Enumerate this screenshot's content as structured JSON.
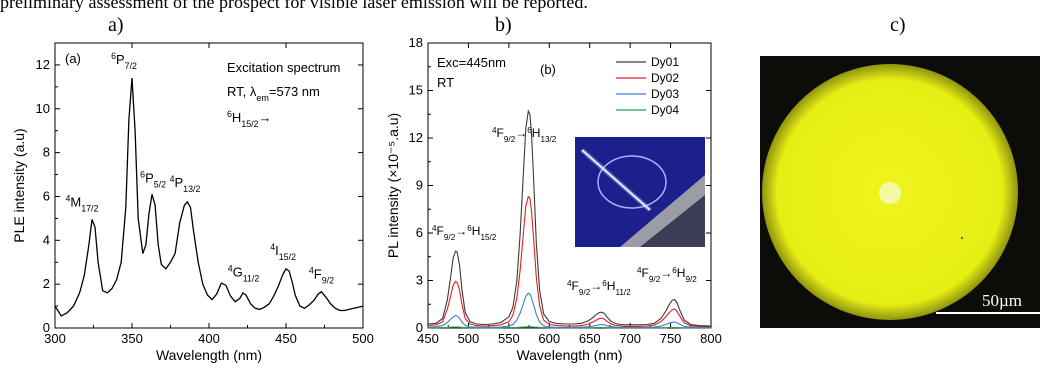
{
  "header_text": "preliminary assessment of the prospect for visible laser emission will be reported.",
  "panel_labels": [
    "a)",
    "b)",
    "c)"
  ],
  "chart_data": [
    {
      "type": "line",
      "panel": "a)",
      "inner_label": "(a)",
      "title": "",
      "xlabel": "Wavelength (nm)",
      "ylabel": "PLE intensity (a.u)",
      "xlim": [
        300,
        500
      ],
      "ylim": [
        0,
        13
      ],
      "xticks": [
        300,
        350,
        400,
        450,
        500
      ],
      "yticks": [
        0,
        2,
        4,
        6,
        8,
        10,
        12
      ],
      "grid": false,
      "annotation_lines": [
        "Excitation spectrum",
        "RT, λem=573 nm",
        "6H15/2→"
      ],
      "peak_labels": [
        {
          "text": "4M17/2",
          "x": 324,
          "y": 5.0
        },
        {
          "text": "6P7/2",
          "x": 350,
          "y": 11.4
        },
        {
          "text": "6P5/2",
          "x": 365,
          "y": 6.1
        },
        {
          "text": "4P13/2",
          "x": 387,
          "y": 5.8
        },
        {
          "text": "4G11/2",
          "x": 425,
          "y": 1.9
        },
        {
          "text": "4I15/2",
          "x": 452,
          "y": 2.7
        },
        {
          "text": "4F9/2",
          "x": 473,
          "y": 1.7
        }
      ],
      "series": [
        {
          "color": "#000000",
          "x": [
            300,
            304,
            308,
            312,
            316,
            319,
            322,
            324,
            326,
            328,
            331,
            334,
            337,
            340,
            343,
            346,
            348,
            350,
            352,
            354,
            357,
            359,
            361,
            363,
            365,
            367,
            369,
            372,
            375,
            378,
            381,
            384,
            386,
            388,
            390,
            393,
            396,
            399,
            402,
            405,
            408,
            411,
            414,
            417,
            420,
            422,
            424,
            427,
            430,
            433,
            436,
            439,
            442,
            445,
            448,
            450,
            452,
            454,
            456,
            459,
            462,
            465,
            468,
            471,
            473,
            476,
            479,
            482,
            485,
            488,
            491,
            494,
            497,
            500
          ],
          "y": [
            1.0,
            0.55,
            0.7,
            1.0,
            1.6,
            2.4,
            3.8,
            4.95,
            4.6,
            3.0,
            1.7,
            1.6,
            1.8,
            2.2,
            3.0,
            5.5,
            9.5,
            11.4,
            9.0,
            5.0,
            3.4,
            3.8,
            5.2,
            6.1,
            5.6,
            3.8,
            2.9,
            2.7,
            3.0,
            3.4,
            4.8,
            5.6,
            5.75,
            5.5,
            4.4,
            3.0,
            2.0,
            1.5,
            1.3,
            1.55,
            2.05,
            1.95,
            1.45,
            1.2,
            1.35,
            1.6,
            1.5,
            1.1,
            0.9,
            0.85,
            0.95,
            1.1,
            1.45,
            1.9,
            2.45,
            2.7,
            2.6,
            2.1,
            1.5,
            1.0,
            0.9,
            1.05,
            1.25,
            1.55,
            1.65,
            1.4,
            1.1,
            0.9,
            0.8,
            0.8,
            0.85,
            0.9,
            0.95,
            1.0
          ]
        }
      ]
    },
    {
      "type": "line",
      "panel": "b)",
      "inner_label": "(b)",
      "title": "",
      "xlabel": "Wavelength (nm)",
      "ylabel": "PL intensity (×10⁻⁵.a.u)",
      "xlim": [
        450,
        800
      ],
      "ylim": [
        0,
        18
      ],
      "xticks": [
        450,
        500,
        550,
        600,
        650,
        700,
        750,
        800
      ],
      "yticks": [
        0,
        3,
        6,
        9,
        12,
        15,
        18
      ],
      "grid": false,
      "annotation_lines": [
        "Exc=445nm",
        "RT"
      ],
      "legend_position": "top-right",
      "transition_labels": [
        "4F9/2→6H15/2",
        "4F9/2→6H13/2",
        "4F9/2→6H11/2",
        "4F9/2→6H9/2"
      ],
      "x": [
        450,
        460,
        468,
        474,
        478,
        481,
        484,
        486,
        489,
        492,
        496,
        502,
        510,
        520,
        530,
        540,
        550,
        555,
        560,
        564,
        568,
        571,
        574,
        576,
        578,
        581,
        584,
        588,
        593,
        600,
        610,
        620,
        630,
        640,
        648,
        654,
        658,
        662,
        665,
        668,
        672,
        677,
        684,
        692,
        700,
        710,
        720,
        730,
        738,
        744,
        748,
        752,
        755,
        758,
        762,
        767,
        775,
        785,
        800
      ],
      "series": [
        {
          "name": "Dy01",
          "color": "#3a3a3a",
          "values": [
            0.25,
            0.3,
            0.6,
            1.8,
            3.2,
            4.4,
            4.85,
            4.8,
            4.0,
            2.4,
            1.0,
            0.4,
            0.25,
            0.22,
            0.25,
            0.35,
            0.7,
            1.3,
            3.0,
            6.0,
            9.8,
            12.6,
            13.7,
            13.5,
            12.3,
            9.0,
            5.4,
            2.4,
            0.9,
            0.4,
            0.28,
            0.25,
            0.25,
            0.3,
            0.45,
            0.65,
            0.85,
            0.98,
            1.0,
            0.92,
            0.65,
            0.4,
            0.25,
            0.2,
            0.2,
            0.2,
            0.22,
            0.3,
            0.6,
            1.05,
            1.45,
            1.75,
            1.8,
            1.6,
            1.05,
            0.5,
            0.22,
            0.15,
            0.12
          ]
        },
        {
          "name": "Dy02",
          "color": "#e02020",
          "values": [
            0.15,
            0.2,
            0.4,
            1.2,
            2.0,
            2.7,
            2.95,
            2.9,
            2.4,
            1.5,
            0.6,
            0.25,
            0.15,
            0.12,
            0.15,
            0.2,
            0.4,
            0.8,
            1.9,
            3.7,
            6.0,
            7.7,
            8.3,
            8.2,
            7.4,
            5.4,
            3.2,
            1.4,
            0.5,
            0.22,
            0.15,
            0.12,
            0.12,
            0.15,
            0.25,
            0.38,
            0.5,
            0.6,
            0.62,
            0.56,
            0.4,
            0.24,
            0.15,
            0.1,
            0.1,
            0.1,
            0.12,
            0.18,
            0.4,
            0.7,
            0.95,
            1.15,
            1.2,
            1.05,
            0.7,
            0.32,
            0.14,
            0.1,
            0.08
          ]
        },
        {
          "name": "Dy03",
          "color": "#3a7fd0",
          "values": [
            0.05,
            0.08,
            0.15,
            0.35,
            0.55,
            0.7,
            0.78,
            0.76,
            0.62,
            0.38,
            0.16,
            0.07,
            0.05,
            0.04,
            0.05,
            0.06,
            0.12,
            0.22,
            0.5,
            0.95,
            1.55,
            2.0,
            2.2,
            2.15,
            1.9,
            1.4,
            0.85,
            0.38,
            0.14,
            0.06,
            0.04,
            0.04,
            0.04,
            0.05,
            0.08,
            0.12,
            0.16,
            0.2,
            0.22,
            0.2,
            0.14,
            0.08,
            0.05,
            0.03,
            0.03,
            0.03,
            0.04,
            0.06,
            0.12,
            0.22,
            0.3,
            0.36,
            0.38,
            0.33,
            0.22,
            0.1,
            0.05,
            0.03,
            0.02
          ]
        },
        {
          "name": "Dy04",
          "color": "#2a9a55",
          "values": [
            0.02,
            0.02,
            0.03,
            0.04,
            0.05,
            0.06,
            0.06,
            0.06,
            0.05,
            0.04,
            0.03,
            0.02,
            0.02,
            0.02,
            0.02,
            0.02,
            0.03,
            0.03,
            0.04,
            0.05,
            0.06,
            0.07,
            0.08,
            0.08,
            0.07,
            0.06,
            0.05,
            0.04,
            0.03,
            0.02,
            0.02,
            0.02,
            0.02,
            0.02,
            0.02,
            0.02,
            0.03,
            0.03,
            0.03,
            0.03,
            0.02,
            0.02,
            0.02,
            0.02,
            0.02,
            0.02,
            0.02,
            0.02,
            0.02,
            0.02,
            0.03,
            0.03,
            0.03,
            0.03,
            0.02,
            0.02,
            0.02,
            0.02,
            0.02
          ]
        }
      ]
    }
  ],
  "micrograph": {
    "scale_label": "50µm",
    "core_color": "#f4f9a6",
    "cladding_color": "#ecf21a",
    "background_color": "#0c0c08"
  }
}
